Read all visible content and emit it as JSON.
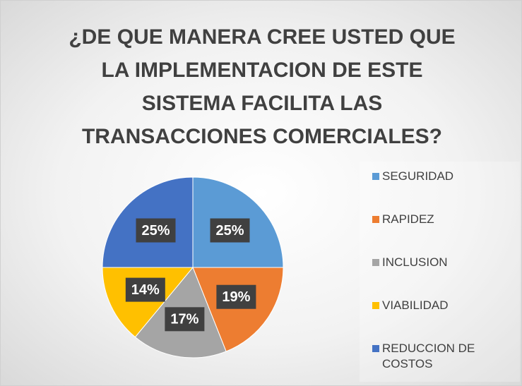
{
  "chart_data": {
    "type": "pie",
    "title": "¿DE QUE MANERA CREE USTED QUE LA IMPLEMENTACION DE ESTE SISTEMA FACILITA LAS TRANSACCIONES COMERCIALES?",
    "categories": [
      "SEGURIDAD",
      "RAPIDEZ",
      "INCLUSION",
      "VIABILIDAD",
      "REDUCCION DE COSTOS"
    ],
    "values": [
      25,
      19,
      17,
      14,
      25
    ],
    "value_labels": [
      "25%",
      "19%",
      "17%",
      "14%",
      "25%"
    ],
    "colors": [
      "#5b9bd5",
      "#ed7d31",
      "#a5a5a5",
      "#ffc000",
      "#4472c4"
    ],
    "legend": "right"
  }
}
